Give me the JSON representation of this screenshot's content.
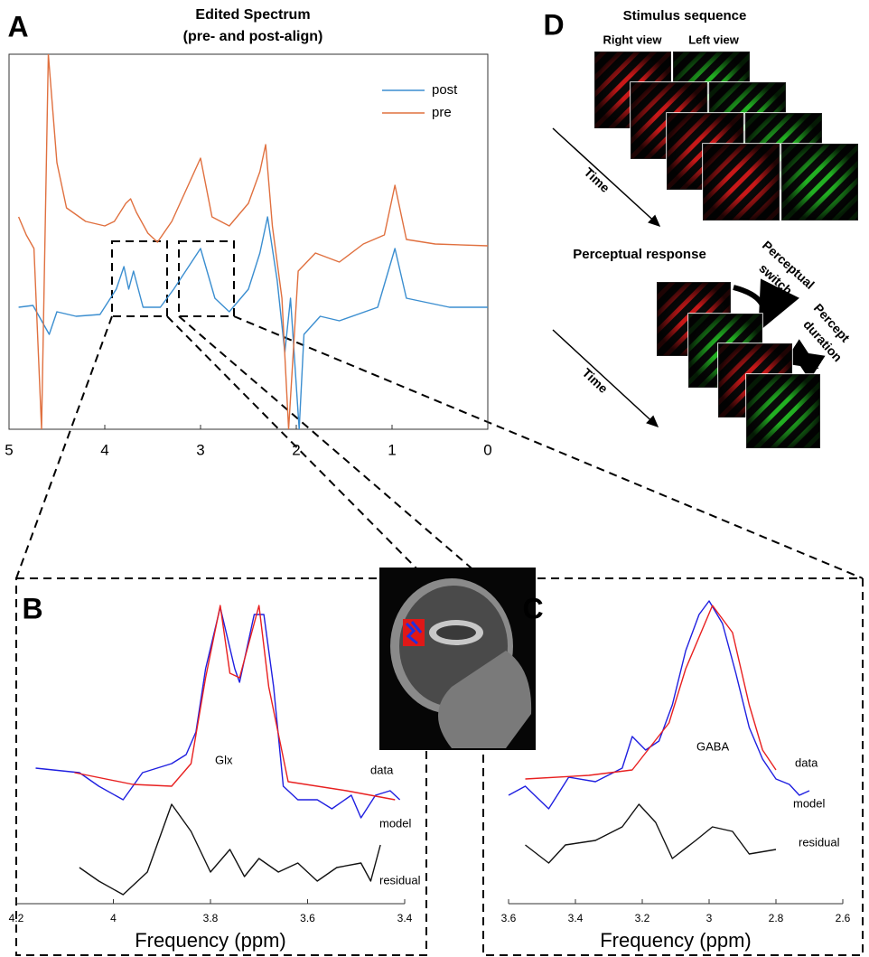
{
  "chart_data": [
    {
      "type": "line",
      "label": "A",
      "title": "Edited Spectrum",
      "subtitle": "(pre- and post-align)",
      "xlim": [
        5,
        0
      ],
      "xticks": [
        5,
        4,
        3,
        2,
        1,
        0
      ],
      "ylim": [
        0,
        415
      ],
      "legend": "upper right",
      "series": [
        {
          "name": "post",
          "color": "#3b8ed0",
          "x": [
            4.9,
            4.75,
            4.58,
            4.5,
            4.3,
            4.05,
            3.88,
            3.8,
            3.75,
            3.7,
            3.6,
            3.42,
            3.28,
            3.0,
            2.85,
            2.7,
            2.5,
            2.38,
            2.3,
            2.2,
            2.12,
            2.06,
            1.97,
            1.92,
            1.75,
            1.55,
            1.15,
            0.97,
            0.85,
            0.4,
            0
          ],
          "values": [
            135,
            137,
            105,
            130,
            125,
            127,
            155,
            180,
            155,
            175,
            135,
            135,
            155,
            200,
            145,
            130,
            155,
            195,
            235,
            165,
            85,
            145,
            0,
            105,
            125,
            120,
            135,
            200,
            145,
            135,
            135
          ]
        },
        {
          "name": "pre",
          "color": "#e0703f",
          "x": [
            4.9,
            4.82,
            4.74,
            4.66,
            4.59,
            4.5,
            4.4,
            4.2,
            4.0,
            3.9,
            3.78,
            3.73,
            3.67,
            3.55,
            3.45,
            3.3,
            3.0,
            2.88,
            2.7,
            2.5,
            2.38,
            2.32,
            2.25,
            2.15,
            2.08,
            1.98,
            1.8,
            1.55,
            1.3,
            1.08,
            0.97,
            0.85,
            0.55,
            0
          ],
          "values": [
            235,
            215,
            200,
            0,
            415,
            295,
            245,
            230,
            225,
            230,
            250,
            255,
            240,
            217,
            207,
            230,
            300,
            235,
            225,
            250,
            285,
            315,
            225,
            145,
            0,
            175,
            195,
            185,
            205,
            215,
            270,
            210,
            205,
            203
          ]
        }
      ]
    },
    {
      "type": "line",
      "label": "B",
      "annotation": "Glx",
      "xlabel": "Frequency (ppm)",
      "xlim": [
        4.2,
        3.4
      ],
      "xticks": [
        4.2,
        4,
        3.8,
        3.6,
        3.4
      ],
      "ylim": [
        0,
        380
      ],
      "series": [
        {
          "name": "data",
          "color": "#1f1fe0",
          "x": [
            4.16,
            4.07,
            4.03,
            3.98,
            3.94,
            3.88,
            3.85,
            3.83,
            3.81,
            3.78,
            3.75,
            3.74,
            3.71,
            3.69,
            3.67,
            3.65,
            3.62,
            3.58,
            3.55,
            3.51,
            3.49,
            3.46,
            3.43,
            3.41
          ],
          "values": [
            150,
            145,
            130,
            115,
            145,
            155,
            165,
            190,
            260,
            328,
            260,
            245,
            320,
            320,
            240,
            130,
            115,
            115,
            105,
            120,
            95,
            120,
            125,
            115
          ]
        },
        {
          "name": "model",
          "color": "#e82020",
          "x": [
            4.08,
            3.96,
            3.88,
            3.84,
            3.81,
            3.78,
            3.76,
            3.74,
            3.7,
            3.68,
            3.64,
            3.52,
            3.42
          ],
          "values": [
            145,
            132,
            130,
            155,
            250,
            330,
            255,
            250,
            330,
            240,
            135,
            125,
            115
          ]
        },
        {
          "name": "residual",
          "color": "#111111",
          "x": [
            4.07,
            4.03,
            3.98,
            3.93,
            3.88,
            3.84,
            3.8,
            3.76,
            3.73,
            3.7,
            3.66,
            3.62,
            3.58,
            3.54,
            3.49,
            3.47,
            3.45
          ],
          "values": [
            40,
            25,
            10,
            35,
            110,
            80,
            35,
            60,
            30,
            50,
            35,
            45,
            25,
            40,
            45,
            25,
            65
          ]
        }
      ]
    },
    {
      "type": "line",
      "label": "C",
      "annotation": "GABA",
      "xlabel": "Frequency (ppm)",
      "xlim": [
        3.6,
        2.6
      ],
      "xticks": [
        3.6,
        3.4,
        3.2,
        3,
        2.8,
        2.6
      ],
      "ylim": [
        0,
        380
      ],
      "series": [
        {
          "name": "data",
          "color": "#1f1fe0",
          "x": [
            3.6,
            3.55,
            3.48,
            3.42,
            3.34,
            3.26,
            3.23,
            3.19,
            3.15,
            3.11,
            3.07,
            3.03,
            3.0,
            2.96,
            2.92,
            2.88,
            2.84,
            2.8,
            2.76,
            2.73,
            2.7
          ],
          "values": [
            120,
            130,
            105,
            140,
            135,
            150,
            185,
            170,
            180,
            220,
            280,
            320,
            335,
            310,
            255,
            195,
            160,
            138,
            132,
            120,
            125
          ]
        },
        {
          "name": "model",
          "color": "#e82020",
          "x": [
            3.55,
            3.36,
            3.23,
            3.12,
            3.07,
            2.99,
            2.93,
            2.88,
            2.84,
            2.8
          ],
          "values": [
            138,
            142,
            148,
            200,
            260,
            330,
            300,
            220,
            170,
            148
          ]
        },
        {
          "name": "residual",
          "color": "#111111",
          "x": [
            3.55,
            3.48,
            3.43,
            3.34,
            3.26,
            3.21,
            3.16,
            3.11,
            3.04,
            2.99,
            2.93,
            2.88,
            2.8
          ],
          "values": [
            65,
            45,
            65,
            70,
            85,
            110,
            90,
            50,
            70,
            85,
            80,
            55,
            60
          ]
        }
      ]
    }
  ],
  "panel_d": {
    "label": "D",
    "title": "Stimulus sequence",
    "right_view": "Right view",
    "left_view": "Left view",
    "time_1": "Time",
    "response_title": "Perceptual response",
    "switch_label": [
      "Perceptual",
      "switch"
    ],
    "duration_label": [
      "Percept",
      "duration"
    ],
    "time_2": "Time"
  }
}
